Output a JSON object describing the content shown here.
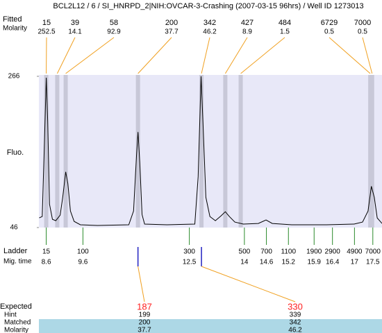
{
  "title": "BCL2L12 / 6 / SI_HNRPD_2|NIH:OVCAR-3-Crashing (2007-03-15 96hrs) / Well ID 1273013",
  "chart_data": {
    "type": "line",
    "x": [
      8.41,
      8.49,
      8.54,
      8.6,
      8.64,
      8.69,
      8.77,
      8.86,
      8.98,
      9.05,
      9.13,
      9.19,
      9.26,
      9.36,
      9.53,
      10.0,
      10.85,
      10.98,
      11.06,
      11.1,
      11.15,
      11.21,
      11.28,
      11.89,
      12.65,
      12.74,
      12.82,
      12.87,
      12.95,
      13.06,
      13.21,
      13.36,
      13.48,
      13.59,
      13.74,
      13.97,
      14.38,
      14.59,
      14.76,
      15.29,
      16.24,
      16.99,
      17.22,
      17.37,
      17.46,
      17.54,
      17.62,
      17.75
    ],
    "values": [
      60,
      62,
      150,
      264,
      200,
      80,
      58,
      56,
      64,
      90,
      127,
      110,
      70,
      55,
      50,
      49,
      50,
      70,
      150,
      185,
      140,
      65,
      51,
      50,
      51,
      120,
      266,
      200,
      90,
      62,
      56,
      63,
      69,
      62,
      54,
      51,
      52,
      57,
      52,
      50,
      50,
      51,
      54,
      70,
      106,
      90,
      60,
      52
    ],
    "xlim": [
      8.4,
      17.75
    ],
    "ylim": [
      46,
      266
    ],
    "yticks": [
      46,
      266
    ],
    "ylabel": "Fluo.",
    "color": "#000000"
  },
  "peaks": {
    "size_label": "Fitted",
    "molarity_label": "Molarity",
    "sizes": [
      15,
      39,
      58,
      200,
      342,
      427,
      484,
      6729,
      7000
    ],
    "molarity": [
      252.5,
      14.1,
      92.9,
      37.7,
      46.2,
      8.9,
      1.5,
      0.5,
      0.5
    ],
    "times": [
      8.6,
      8.9,
      9.13,
      11.1,
      12.83,
      13.48,
      13.9,
      17.43,
      17.48
    ]
  },
  "ladder": {
    "label": "Ladder",
    "time_label": "Mig. time",
    "sizes": [
      15,
      100,
      300,
      500,
      700,
      1100,
      1900,
      2900,
      4900,
      7000
    ],
    "times": [
      8.6,
      9.6,
      12.5,
      14,
      14.6,
      15.2,
      15.9,
      16.4,
      17,
      17.5
    ]
  },
  "expected": {
    "label": "Expected",
    "hint_label": "Hint",
    "matched_label": "Matched",
    "molarity_label": "Molarity",
    "expected": [
      187,
      330
    ],
    "hint": [
      199,
      339
    ],
    "matched": [
      200,
      342
    ],
    "molarity": [
      37.7,
      46.2
    ],
    "times": [
      11.1,
      12.83
    ]
  }
}
